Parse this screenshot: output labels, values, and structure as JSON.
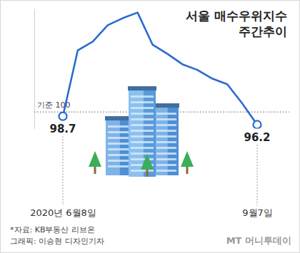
{
  "chart_data": {
    "type": "line",
    "title": "서울 매수우위지수",
    "subtitle": "주간추이",
    "categories": [
      "2020년 6월8일",
      null,
      null,
      null,
      null,
      null,
      null,
      null,
      null,
      null,
      null,
      null,
      null,
      "9월7일"
    ],
    "values": [
      98.7,
      118.5,
      121.1,
      126.0,
      128.1,
      129.8,
      120.2,
      117.4,
      114.3,
      112.6,
      110.0,
      108.3,
      102.6,
      96.2
    ],
    "value_labels": [
      "98.7",
      null,
      null,
      null,
      null,
      null,
      null,
      null,
      null,
      null,
      null,
      null,
      null,
      "96.2"
    ],
    "color": "#2a6bd0",
    "ylim": [
      95,
      131
    ],
    "yticks": [
      {
        "value": 100,
        "label": "기준 100"
      }
    ],
    "grid": true,
    "source": "*자료: KB부동산 리브온",
    "credit": "그래픽: 이승현 디자인기자",
    "watermark": "MT 머니투데이"
  }
}
